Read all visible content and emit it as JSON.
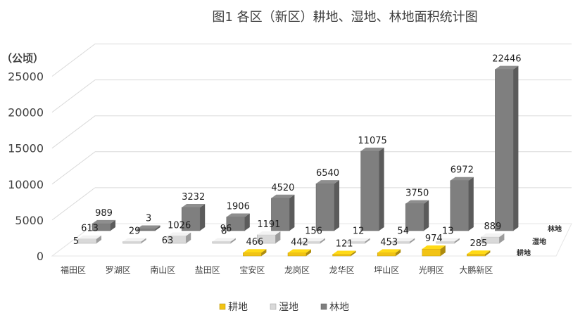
{
  "chart_data": {
    "type": "bar",
    "title": "图1  各区（新区）耕地、湿地、林地面积统计图",
    "ylabel": "（公顷）",
    "ylim": [
      0,
      25000
    ],
    "yticks": [
      "0",
      "5000",
      "10000",
      "15000",
      "20000",
      "25000"
    ],
    "grid": true,
    "legend_position": "bottom",
    "categories": [
      "福田区",
      "罗湖区",
      "南山区",
      "盐田区",
      "宝安区",
      "龙岗区",
      "龙华区",
      "坪山区",
      "光明区",
      "大鹏新区"
    ],
    "series": [
      {
        "name": "耕地",
        "color": "#F2C314",
        "values": [
          null,
          null,
          null,
          null,
          466,
          442,
          121,
          453,
          974,
          285
        ],
        "labels": [
          "",
          "",
          "",
          "",
          "466",
          "442",
          "121",
          "453",
          "974",
          "285"
        ]
      },
      {
        "name": "湿地",
        "color": "#D9D9D9",
        "values": [
          613,
          29,
          1026,
          8,
          1191,
          156,
          12,
          54,
          13,
          889
        ],
        "labels": [
          "613",
          "29",
          "1026",
          "8",
          "1191",
          "156",
          "12",
          "54",
          "13",
          "889"
        ]
      },
      {
        "name": "林地",
        "color": "#7F7F7F",
        "values": [
          989,
          3,
          3232,
          1906,
          4520,
          6540,
          11075,
          3750,
          6972,
          22446
        ],
        "labels": [
          "989",
          "3",
          "3232",
          "1906",
          "4520",
          "6540",
          "11075",
          "3750",
          "6972",
          "22446"
        ]
      }
    ],
    "extra_labels": [
      "5",
      "63",
      "96"
    ],
    "depth_axis_labels": [
      "林地",
      "湿地",
      "耕地"
    ]
  }
}
